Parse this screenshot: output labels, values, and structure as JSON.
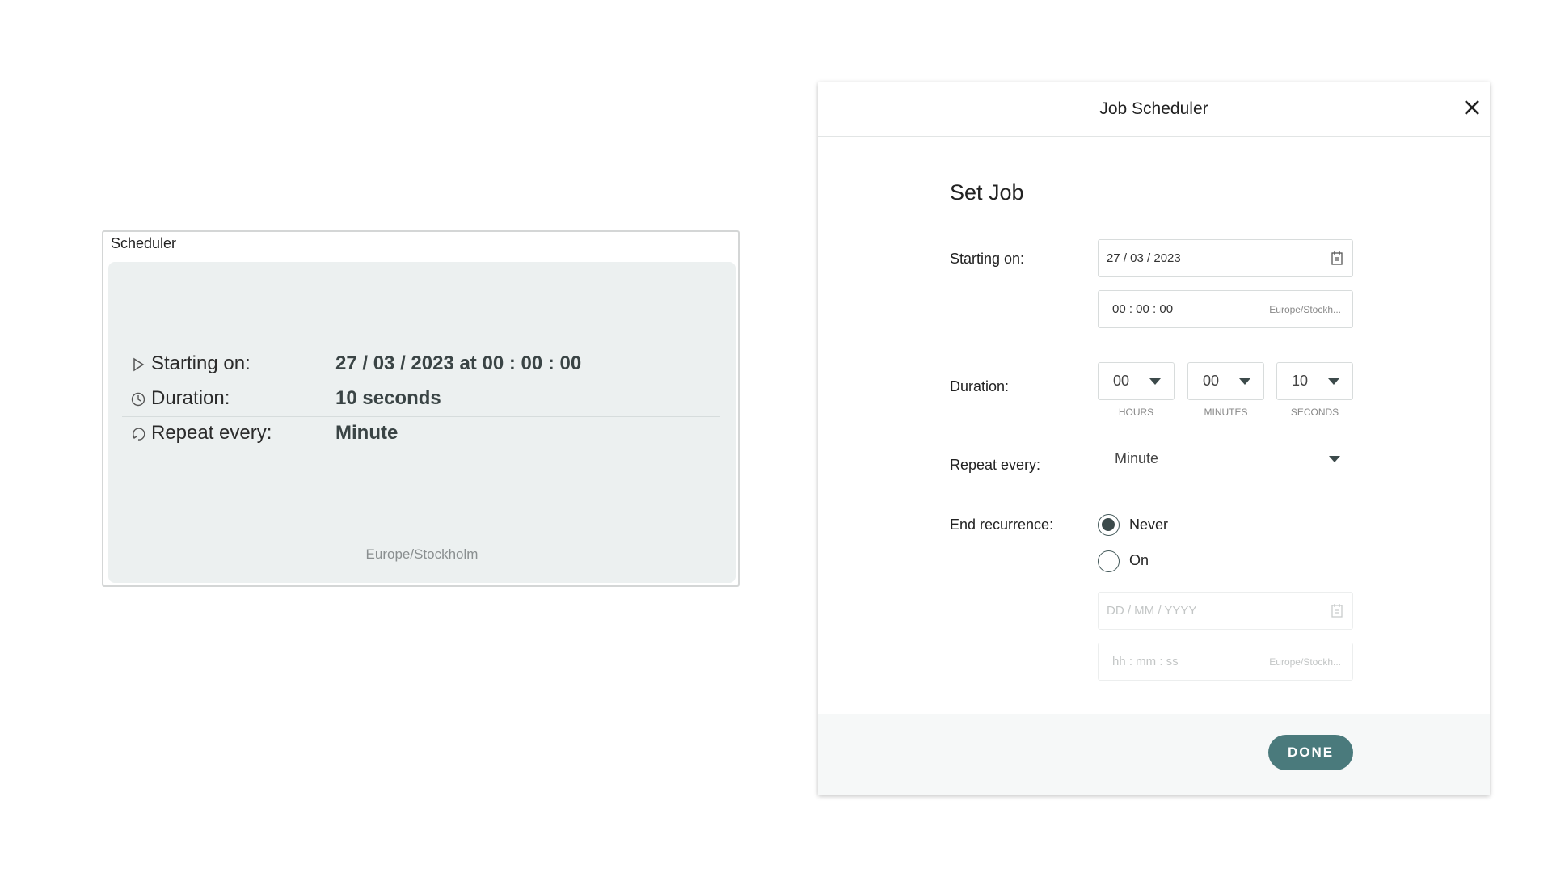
{
  "summary_card": {
    "title": "Scheduler",
    "rows": [
      {
        "icon": "play-icon",
        "label": "Starting on:",
        "value": "27 / 03 / 2023 at 00 : 00 : 00"
      },
      {
        "icon": "clock-icon",
        "label": "Duration:",
        "value": "10 seconds"
      },
      {
        "icon": "repeat-icon",
        "label": "Repeat every:",
        "value": "Minute"
      }
    ],
    "timezone": "Europe/Stockholm"
  },
  "modal": {
    "title": "Job Scheduler",
    "heading": "Set Job",
    "starting_on": {
      "label": "Starting on:",
      "date": "27 / 03 / 2023",
      "time": "00 : 00 : 00",
      "timezone": "Europe/Stockh..."
    },
    "duration": {
      "label": "Duration:",
      "hours": "00",
      "minutes": "00",
      "seconds": "10",
      "hours_label": "HOURS",
      "minutes_label": "MINUTES",
      "seconds_label": "SECONDS"
    },
    "repeat": {
      "label": "Repeat every:",
      "value": "Minute"
    },
    "end_recurrence": {
      "label": "End recurrence:",
      "options": [
        "Never",
        "On"
      ],
      "selected": "Never",
      "date_placeholder": "DD / MM / YYYY",
      "time_placeholder": "hh : mm : ss",
      "timezone": "Europe/Stockh..."
    },
    "done_label": "DONE"
  },
  "colors": {
    "accent": "#4a7a7c",
    "panel": "#ecf0f0"
  }
}
